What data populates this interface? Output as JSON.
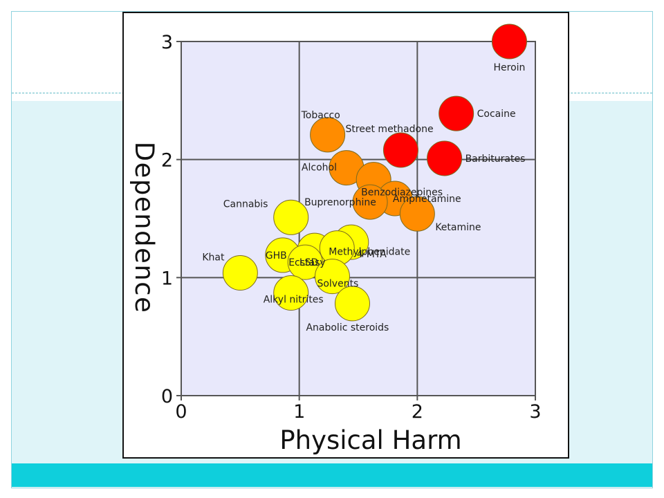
{
  "slide": {
    "frame_color": "#8fd3df",
    "band_color": "#dff4f8",
    "footer_color": "#0fcfdc"
  },
  "chart_data": {
    "type": "scatter",
    "title": "",
    "xlabel": "Physical Harm",
    "ylabel": "Dependence",
    "xlim": [
      0,
      3
    ],
    "ylim": [
      0,
      3
    ],
    "x_ticks": [
      "0",
      "1",
      "2",
      "3"
    ],
    "y_ticks": [
      "0",
      "1",
      "2",
      "3"
    ],
    "grid": true,
    "plot_background": "#e8e8fb",
    "colors": {
      "red": "#ff0000",
      "orange": "#ff8c00",
      "yellow": "#ffff00"
    },
    "points": [
      {
        "label": "Heroin",
        "x": 2.78,
        "y": 3.0,
        "color": "red"
      },
      {
        "label": "Cocaine",
        "x": 2.33,
        "y": 2.39,
        "color": "red"
      },
      {
        "label": "Street methadone",
        "x": 1.86,
        "y": 2.08,
        "color": "red"
      },
      {
        "label": "Barbiturates",
        "x": 2.23,
        "y": 2.01,
        "color": "red"
      },
      {
        "label": "Tobacco",
        "x": 1.24,
        "y": 2.21,
        "color": "orange"
      },
      {
        "label": "Alcohol",
        "x": 1.4,
        "y": 1.93,
        "color": "orange"
      },
      {
        "label": "Benzodiazepines",
        "x": 1.63,
        "y": 1.83,
        "color": "orange"
      },
      {
        "label": "Amphetamine",
        "x": 1.81,
        "y": 1.67,
        "color": "orange"
      },
      {
        "label": "Buprenorphine",
        "x": 1.6,
        "y": 1.64,
        "color": "orange"
      },
      {
        "label": "Ketamine",
        "x": 2.0,
        "y": 1.54,
        "color": "orange"
      },
      {
        "label": "Cannabis",
        "x": 0.93,
        "y": 1.51,
        "color": "yellow"
      },
      {
        "label": "4-MTA",
        "x": 1.44,
        "y": 1.3,
        "color": "yellow"
      },
      {
        "label": "LSD",
        "x": 1.13,
        "y": 1.23,
        "color": "yellow"
      },
      {
        "label": "Methylphenidate",
        "x": 1.32,
        "y": 1.25,
        "color": "yellow"
      },
      {
        "label": "GHB",
        "x": 0.86,
        "y": 1.19,
        "color": "yellow"
      },
      {
        "label": "Ecstasy",
        "x": 1.05,
        "y": 1.13,
        "color": "yellow"
      },
      {
        "label": "Khat",
        "x": 0.5,
        "y": 1.04,
        "color": "yellow"
      },
      {
        "label": "Solvents",
        "x": 1.28,
        "y": 1.01,
        "color": "yellow"
      },
      {
        "label": "Alkyl nitrites",
        "x": 0.93,
        "y": 0.87,
        "color": "yellow"
      },
      {
        "label": "Anabolic steroids",
        "x": 1.45,
        "y": 0.78,
        "color": "yellow"
      }
    ]
  }
}
